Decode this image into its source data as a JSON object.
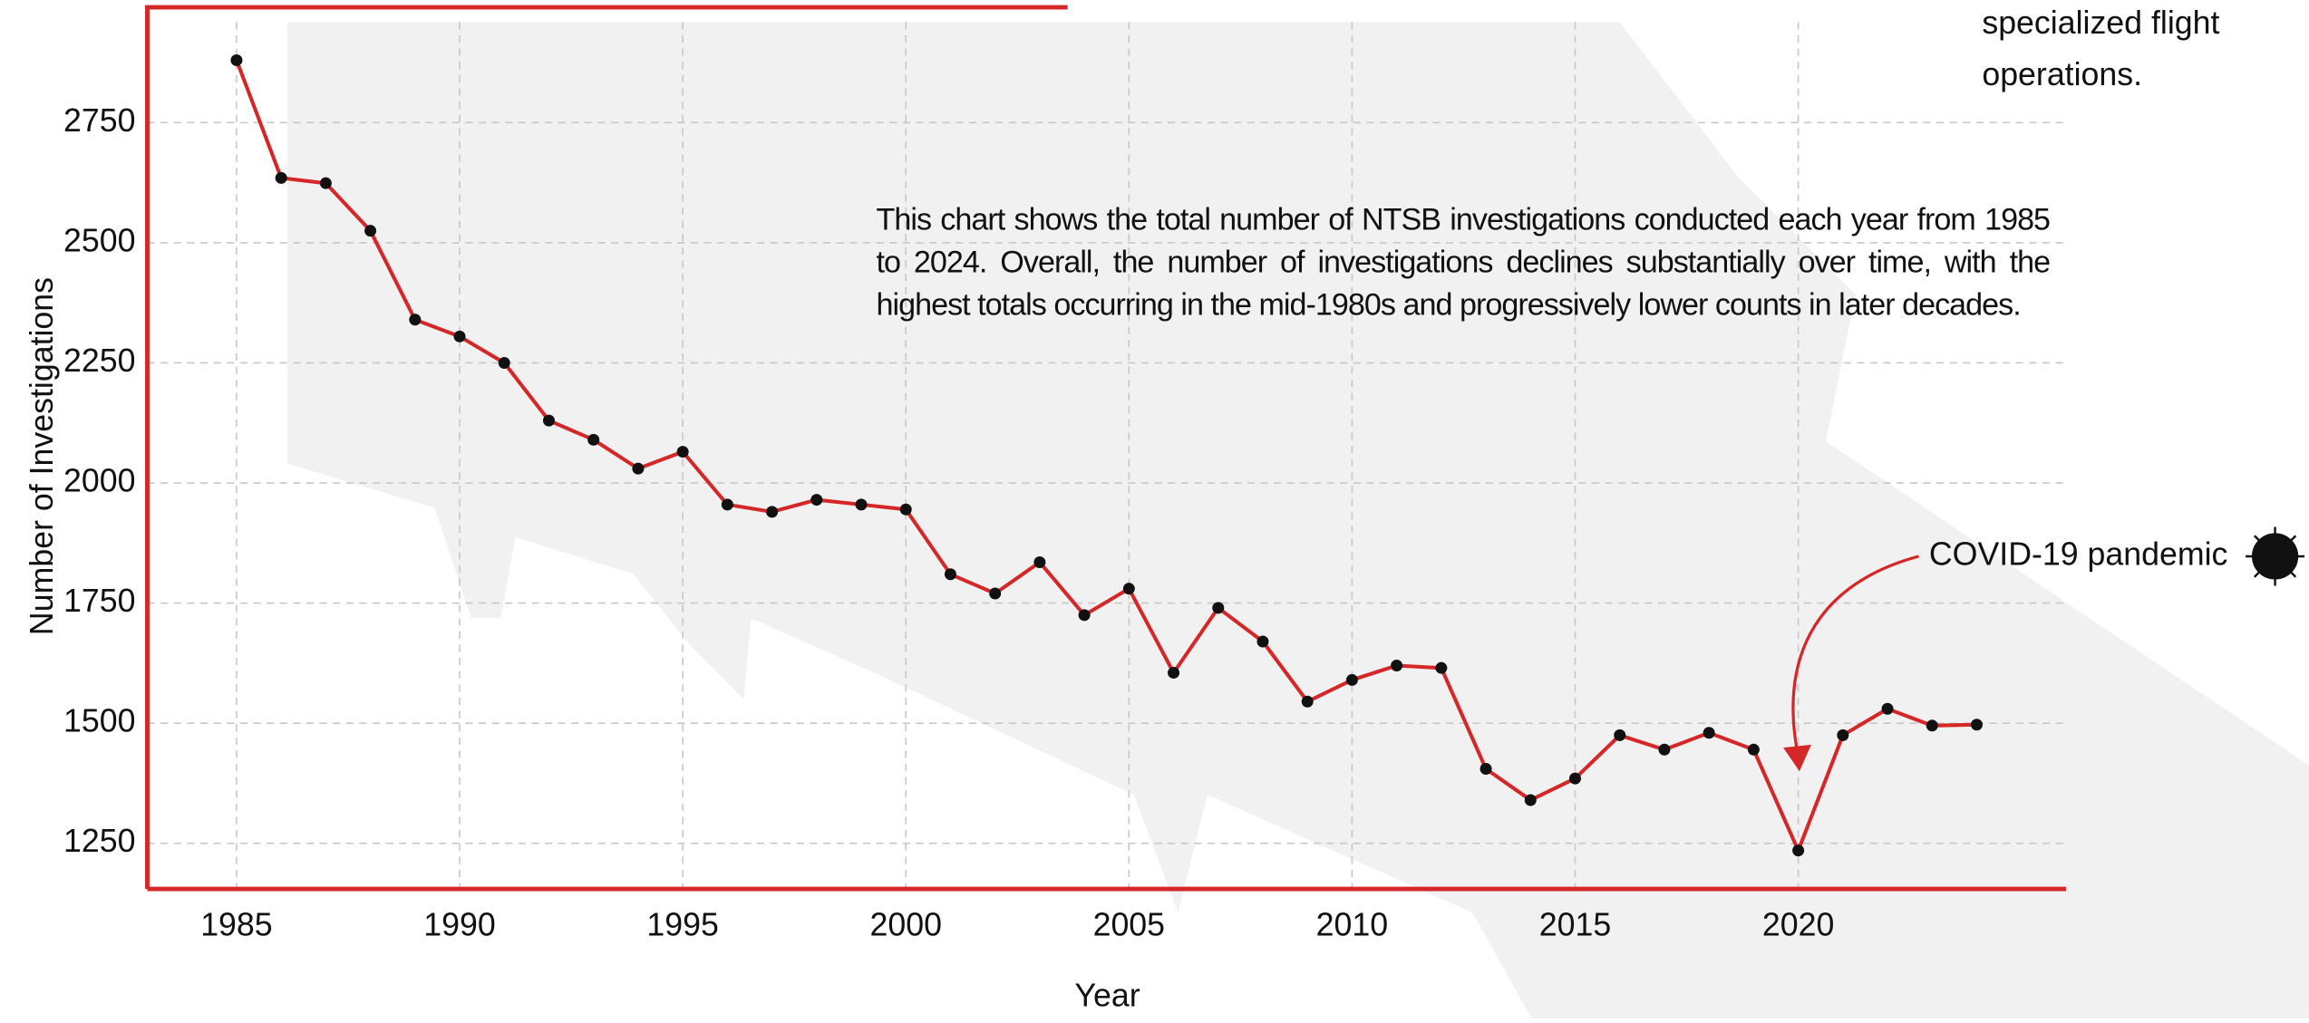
{
  "chart_data": {
    "type": "line",
    "x_label": "Year",
    "y_label": "Number of Investigations",
    "description": "This chart shows the total number of NTSB investigations conducted each year from 1985 to 2024. Overall, the number of investigations declines substantially over time, with the highest totals occurring in the mid-1980s and progressively lower counts in later decades.",
    "corner_note": [
      "specialized flight",
      "operations."
    ],
    "annotation": "COVID-19 pandemic",
    "x": [
      1985,
      1986,
      1987,
      1988,
      1989,
      1990,
      1991,
      1992,
      1993,
      1994,
      1995,
      1996,
      1997,
      1998,
      1999,
      2000,
      2001,
      2002,
      2003,
      2004,
      2005,
      2006,
      2007,
      2008,
      2009,
      2010,
      2011,
      2012,
      2013,
      2014,
      2015,
      2016,
      2017,
      2018,
      2019,
      2020,
      2021,
      2022,
      2023,
      2024
    ],
    "series": [
      {
        "name": "NTSB investigations",
        "color": "#d62728",
        "values": [
          2880,
          2635,
          2624,
          2525,
          2340,
          2305,
          2250,
          2130,
          2090,
          2030,
          2065,
          1955,
          1940,
          1965,
          1955,
          1945,
          1810,
          1770,
          1835,
          1725,
          1780,
          1605,
          1740,
          1670,
          1545,
          1590,
          1620,
          1615,
          1405,
          1340,
          1385,
          1475,
          1445,
          1480,
          1445,
          1235,
          1475,
          1530,
          1495,
          1497
        ]
      }
    ],
    "xlim": [
      1983,
      2026
    ],
    "xticks": [
      1985,
      1990,
      1995,
      2000,
      2005,
      2010,
      2015,
      2020
    ],
    "ylim": [
      1155,
      2990
    ],
    "yticks": [
      1250,
      1500,
      1750,
      2000,
      2250,
      2500,
      2750
    ],
    "grid": true
  }
}
